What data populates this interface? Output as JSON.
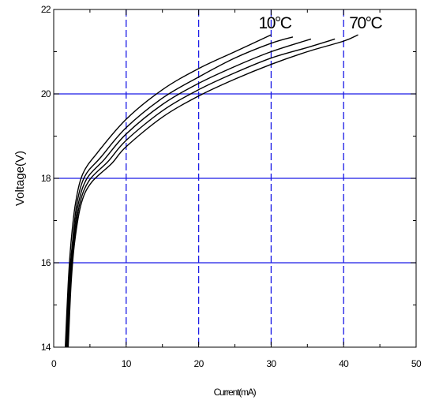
{
  "chart_data": {
    "type": "line",
    "xlabel": "Current(mA)",
    "ylabel": "Voltage(V)",
    "xlim": [
      0,
      50
    ],
    "ylim": [
      1.4,
      2.2
    ],
    "x_ticks": [
      0,
      10,
      20,
      30,
      40,
      50
    ],
    "x_tick_labels": [
      "0",
      "10",
      "20",
      "30",
      "40",
      "50"
    ],
    "y_ticks": [
      1.4,
      1.6,
      1.8,
      2.0,
      2.2
    ],
    "y_tick_labels": [
      "14",
      "16",
      "18",
      "20",
      "22"
    ],
    "grid": true,
    "grid_color": "#1a1ae6",
    "annotations": [
      {
        "text": "10°C",
        "x": 30.5,
        "y": 2.155
      },
      {
        "text": "70°C",
        "x": 43.0,
        "y": 2.155
      }
    ],
    "series": [
      {
        "values": [
          [
            1.6,
            1.4
          ],
          [
            2.0,
            1.55
          ],
          [
            2.4,
            1.65
          ],
          [
            3.0,
            1.74
          ],
          [
            4.0,
            1.81
          ],
          [
            6,
            1.86
          ],
          [
            10,
            1.94
          ],
          [
            15,
            2.01
          ],
          [
            20,
            2.06
          ],
          [
            25,
            2.1
          ],
          [
            30,
            2.14
          ]
        ]
      },
      {
        "values": [
          [
            1.7,
            1.4
          ],
          [
            2.1,
            1.55
          ],
          [
            2.6,
            1.65
          ],
          [
            3.2,
            1.74
          ],
          [
            4.3,
            1.805
          ],
          [
            6.5,
            1.85
          ],
          [
            10,
            1.92
          ],
          [
            15,
            1.99
          ],
          [
            20,
            2.04
          ],
          [
            25,
            2.085
          ],
          [
            30,
            2.12
          ],
          [
            33,
            2.135
          ]
        ]
      },
      {
        "values": [
          [
            1.8,
            1.4
          ],
          [
            2.2,
            1.55
          ],
          [
            2.7,
            1.65
          ],
          [
            3.4,
            1.74
          ],
          [
            4.6,
            1.8
          ],
          [
            7,
            1.845
          ],
          [
            10,
            1.905
          ],
          [
            15,
            1.975
          ],
          [
            20,
            2.025
          ],
          [
            25,
            2.065
          ],
          [
            30,
            2.1
          ],
          [
            35.5,
            2.13
          ]
        ]
      },
      {
        "values": [
          [
            1.9,
            1.4
          ],
          [
            2.3,
            1.55
          ],
          [
            2.8,
            1.65
          ],
          [
            3.6,
            1.74
          ],
          [
            4.9,
            1.795
          ],
          [
            7.5,
            1.84
          ],
          [
            10,
            1.89
          ],
          [
            15,
            1.96
          ],
          [
            20,
            2.01
          ],
          [
            25,
            2.05
          ],
          [
            30,
            2.085
          ],
          [
            35,
            2.11
          ],
          [
            38.8,
            2.13
          ]
        ]
      },
      {
        "values": [
          [
            2.0,
            1.4
          ],
          [
            2.4,
            1.55
          ],
          [
            2.9,
            1.65
          ],
          [
            3.8,
            1.74
          ],
          [
            5.2,
            1.79
          ],
          [
            8,
            1.835
          ],
          [
            10,
            1.875
          ],
          [
            15,
            1.945
          ],
          [
            20,
            1.995
          ],
          [
            25,
            2.035
          ],
          [
            30,
            2.07
          ],
          [
            35,
            2.1
          ],
          [
            40,
            2.125
          ],
          [
            42,
            2.14
          ]
        ]
      }
    ]
  }
}
